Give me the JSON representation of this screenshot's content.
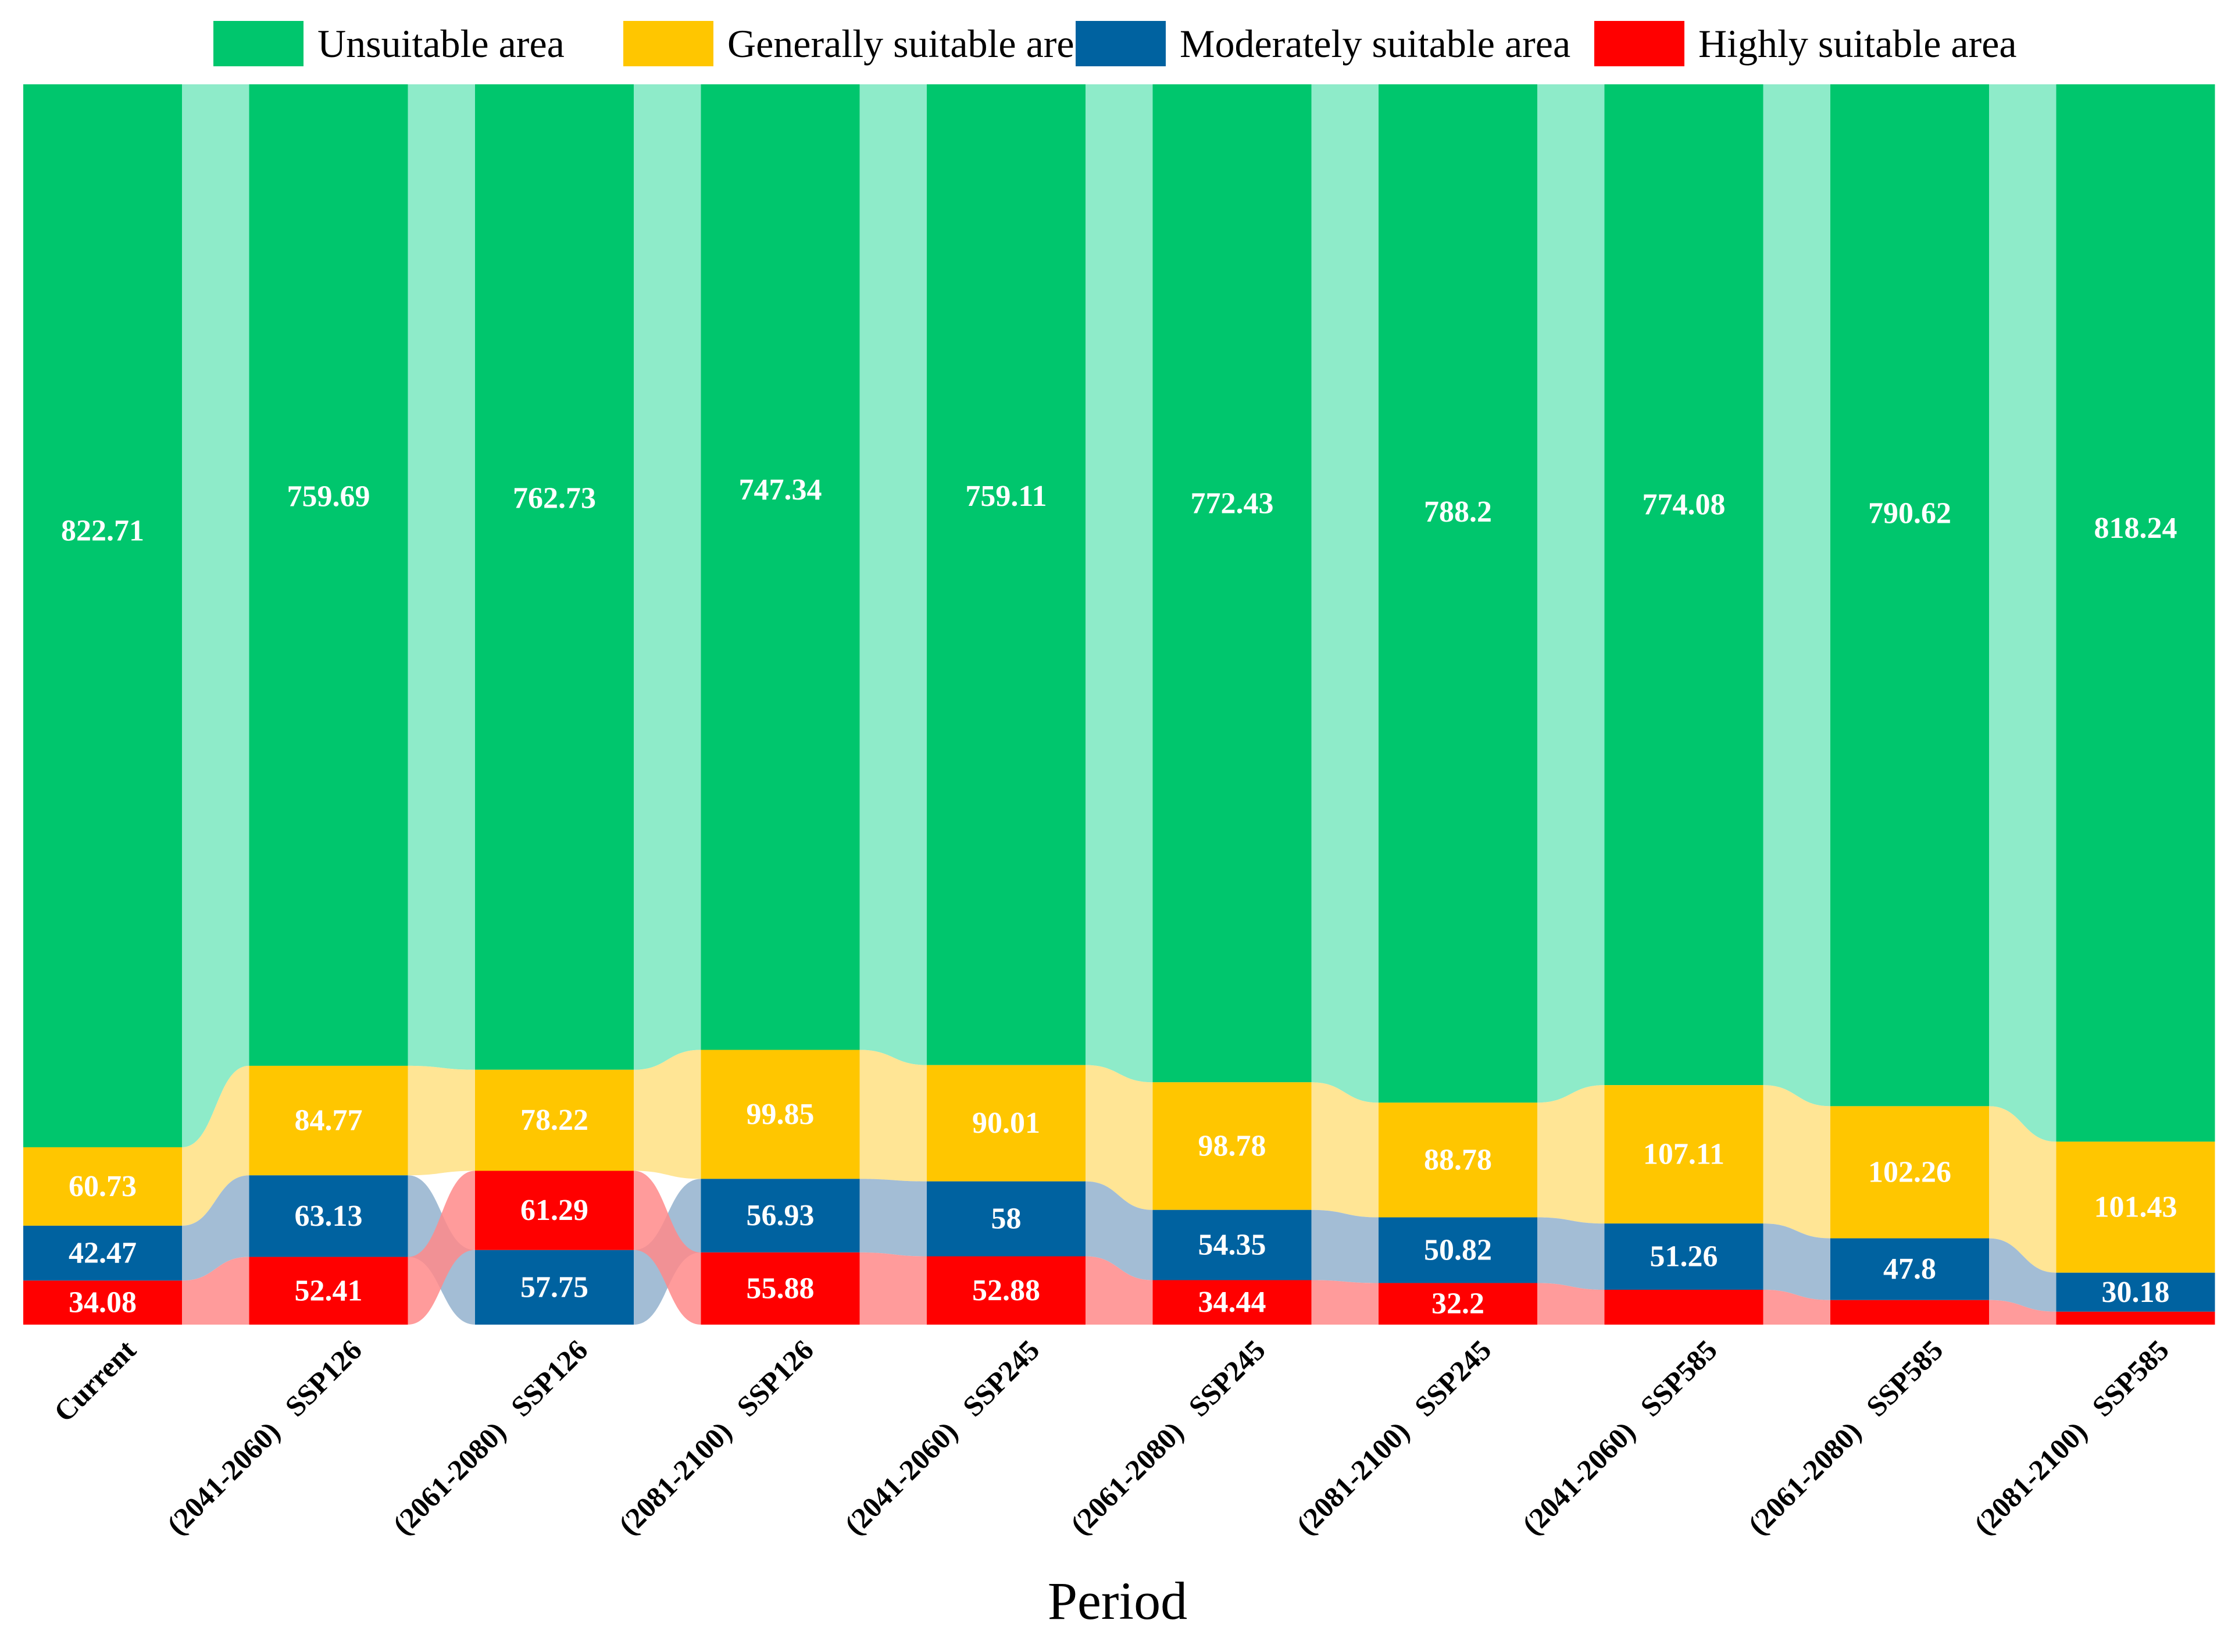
{
  "chart_data": {
    "type": "bar",
    "subtype": "stacked-bar-with-sankey-links",
    "xlabel": "Period",
    "ylabel": "",
    "legend_position": "top",
    "categories": [
      "Current",
      "(2041-2060)   SSP126",
      "(2061-2080)   SSP126",
      "(2081-2100)   SSP126",
      "(2041-2060)   SSP245",
      "(2061-2080)   SSP245",
      "(2081-2100)   SSP245",
      "(2041-2060)   SSP585",
      "(2061-2080)   SSP585",
      "(2081-2100)   SSP585"
    ],
    "series": [
      {
        "name": "Unsuitable area",
        "color": "#00C66D",
        "link_color": "#7AE8BF",
        "values": [
          822.71,
          759.69,
          762.73,
          747.34,
          759.11,
          772.43,
          788.2,
          774.08,
          790.62,
          818.24
        ]
      },
      {
        "name": "Generally suitable area",
        "color": "#FFC600",
        "link_color": "#FFE182",
        "values": [
          60.73,
          84.77,
          78.22,
          99.85,
          90.01,
          98.78,
          88.78,
          107.11,
          102.26,
          101.43
        ]
      },
      {
        "name": "Moderately suitable area",
        "color": "#0062A0",
        "link_color": "#93B2CE",
        "values": [
          42.47,
          63.13,
          57.75,
          56.93,
          58,
          54.35,
          50.82,
          51.26,
          47.8,
          30.18
        ]
      },
      {
        "name": "Highly suitable area",
        "color": "#FF0000",
        "link_color": "#FF8A8A",
        "values": [
          34.08,
          52.41,
          61.29,
          55.88,
          52.88,
          34.44,
          32.2,
          null,
          null,
          null
        ]
      }
    ],
    "stack_order_bottom_to_top": [
      [
        "Highly suitable area",
        "Moderately suitable area",
        "Generally suitable area",
        "Unsuitable area"
      ],
      [
        "Highly suitable area",
        "Moderately suitable area",
        "Generally suitable area",
        "Unsuitable area"
      ],
      [
        "Moderately suitable area",
        "Highly suitable area",
        "Generally suitable area",
        "Unsuitable area"
      ],
      [
        "Highly suitable area",
        "Moderately suitable area",
        "Generally suitable area",
        "Unsuitable area"
      ],
      [
        "Highly suitable area",
        "Moderately suitable area",
        "Generally suitable area",
        "Unsuitable area"
      ],
      [
        "Highly suitable area",
        "Moderately suitable area",
        "Generally suitable area",
        "Unsuitable area"
      ],
      [
        "Highly suitable area",
        "Moderately suitable area",
        "Generally suitable area",
        "Unsuitable area"
      ],
      [
        "Highly suitable area",
        "Moderately suitable area",
        "Generally suitable area",
        "Unsuitable area"
      ],
      [
        "Highly suitable area",
        "Moderately suitable area",
        "Generally suitable area",
        "Unsuitable area"
      ],
      [
        "Highly suitable area",
        "Moderately suitable area",
        "Generally suitable area",
        "Unsuitable area"
      ]
    ],
    "unlabeled_estimates": {
      "Highly suitable area": [
        null,
        null,
        null,
        null,
        null,
        null,
        null,
        27,
        19,
        10
      ]
    },
    "total_per_period": 960,
    "grid": false
  }
}
